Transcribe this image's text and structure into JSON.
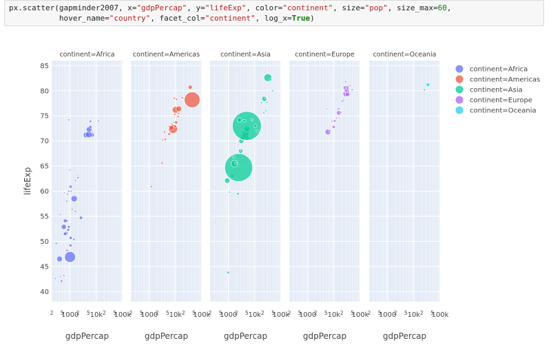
{
  "code": {
    "line1_prefix": "px.scatter(gapminder2007, x=",
    "x_arg": "\"gdpPercap\"",
    "y_pre": ", y=",
    "y_arg": "\"lifeExp\"",
    "color_pre": ", color=",
    "color_arg": "\"continent\"",
    "size_pre": ", size=",
    "size_arg": "\"pop\"",
    "sizemax_pre": ", size_max=",
    "sizemax_arg": "60",
    "line1_end": ",",
    "line2_indent": "           hover_name=",
    "hover_arg": "\"country\"",
    "facet_pre": ", facet_col=",
    "facet_arg": "\"continent\"",
    "logx_pre": ", log_x=",
    "logx_arg": "True",
    "line2_end": ")"
  },
  "chart_data": {
    "type": "scatter",
    "xlabel": "gdpPercap",
    "ylabel": "lifeExp",
    "x_scale": "log",
    "xlim": [
      200,
      100000
    ],
    "ylim": [
      38,
      86
    ],
    "y_ticks": [
      40,
      45,
      50,
      55,
      60,
      65,
      70,
      75,
      80,
      85
    ],
    "x_ticks": [
      {
        "value": 200,
        "label": "2"
      },
      {
        "value": 500,
        "label": "5"
      },
      {
        "value": 1000,
        "label": "1000"
      },
      {
        "value": 2000,
        "label": "2"
      },
      {
        "value": 5000,
        "label": "5"
      },
      {
        "value": 10000,
        "label": "10k"
      },
      {
        "value": 20000,
        "label": "2"
      },
      {
        "value": 50000,
        "label": "5"
      },
      {
        "value": 100000,
        "label": "100k"
      }
    ],
    "grid": true,
    "legend_position": "right",
    "facets": [
      {
        "title": "continent=Africa",
        "color": "#636efa",
        "points": [
          [
            277,
            42.6,
            1.2
          ],
          [
            470,
            42.1,
            1.6
          ],
          [
            430,
            43.0,
            1.2
          ],
          [
            580,
            43.2,
            1.4
          ],
          [
            700,
            46.4,
            1.5
          ],
          [
            1000,
            46.9,
            7.8
          ],
          [
            400,
            46.5,
            4.1
          ],
          [
            760,
            48.2,
            1.5
          ],
          [
            860,
            48.2,
            1.1
          ],
          [
            1040,
            49.2,
            2.0
          ],
          [
            300,
            49.6,
            1.5
          ],
          [
            1400,
            50.4,
            1.6
          ],
          [
            1060,
            50.7,
            2.2
          ],
          [
            700,
            51.6,
            2.8
          ],
          [
            640,
            51.5,
            2.4
          ],
          [
            860,
            52.3,
            2.0
          ],
          [
            580,
            52.9,
            3.7
          ],
          [
            900,
            52.9,
            1.9
          ],
          [
            750,
            54.1,
            2.0
          ],
          [
            650,
            54.1,
            2.7
          ],
          [
            2600,
            54.7,
            2.3
          ],
          [
            420,
            55.3,
            1.2
          ],
          [
            1600,
            56.0,
            1.4
          ],
          [
            1200,
            56.4,
            1.3
          ],
          [
            750,
            58.0,
            1.4
          ],
          [
            1440,
            58.5,
            4.5
          ],
          [
            820,
            59.4,
            1.3
          ],
          [
            900,
            60.0,
            1.4
          ],
          [
            600,
            59.7,
            1.1
          ],
          [
            1100,
            60.0,
            1.3
          ],
          [
            1050,
            60.9,
            2.2
          ],
          [
            1600,
            62.1,
            1.3
          ],
          [
            2000,
            62.7,
            1.5
          ],
          [
            1900,
            63.1,
            1.0
          ],
          [
            1000,
            64.2,
            1.2
          ],
          [
            7000,
            71.2,
            3.0
          ],
          [
            4100,
            71.2,
            4.1
          ],
          [
            5200,
            71.3,
            4.7
          ],
          [
            7100,
            71.8,
            1.2
          ],
          [
            5300,
            72.3,
            4.1
          ],
          [
            6000,
            73.0,
            1.2
          ],
          [
            6000,
            72.8,
            2.0
          ],
          [
            6000,
            73.9,
            1.7
          ],
          [
            12000,
            74.0,
            1.3
          ],
          [
            900,
            74.2,
            1.4
          ]
        ]
      },
      {
        "title": "continent=Americas",
        "color": "#ef553b",
        "points": [
          [
            1200,
            60.9,
            1.4
          ],
          [
            3100,
            65.6,
            1.5
          ],
          [
            3200,
            70.2,
            1.2
          ],
          [
            4100,
            70.3,
            1.6
          ],
          [
            3800,
            71.8,
            1.5
          ],
          [
            5700,
            71.4,
            1.8
          ],
          [
            8000,
            72.4,
            6.5
          ],
          [
            5800,
            72.9,
            1.5
          ],
          [
            7000,
            72.6,
            3.5
          ],
          [
            9700,
            72.9,
            1.8
          ],
          [
            10600,
            73.7,
            2.2
          ],
          [
            7400,
            73.4,
            1.2
          ],
          [
            12600,
            74.9,
            1.5
          ],
          [
            10000,
            76.2,
            4.8
          ],
          [
            13400,
            76.4,
            4.1
          ],
          [
            9300,
            75.3,
            1.5
          ],
          [
            8600,
            73.7,
            1.2
          ],
          [
            13200,
            75.5,
            1.5
          ],
          [
            11000,
            78.3,
            1.5
          ],
          [
            18000,
            78.6,
            1.5
          ],
          [
            9000,
            78.5,
            1.5
          ],
          [
            36300,
            80.7,
            3.0
          ],
          [
            42950,
            78.2,
            11.3
          ]
        ]
      },
      {
        "title": "continent=Asia",
        "color": "#00cc96",
        "points": [
          [
            974,
            43.8,
            1.8
          ],
          [
            1100,
            59.8,
            1.3
          ],
          [
            2300,
            59.5,
            1.7
          ],
          [
            900,
            62.1,
            3.8
          ],
          [
            1400,
            63.1,
            2.4
          ],
          [
            2450,
            64.7,
            20.2
          ],
          [
            1700,
            65.5,
            4.9
          ],
          [
            1900,
            65.6,
            1.8
          ],
          [
            1600,
            66.8,
            1.8
          ],
          [
            2900,
            68.0,
            3.2
          ],
          [
            2700,
            68.1,
            1.6
          ],
          [
            3100,
            70.0,
            3.6
          ],
          [
            3500,
            70.6,
            3.5
          ],
          [
            5000,
            70.6,
            3.1
          ],
          [
            3200,
            71.0,
            1.6
          ],
          [
            4400,
            71.2,
            4.7
          ],
          [
            5200,
            71.4,
            2.0
          ],
          [
            5000,
            72.4,
            4.2
          ],
          [
            4900,
            72.9,
            1.4
          ],
          [
            3500,
            71.7,
            1.8
          ],
          [
            5000,
            73.0,
            20.9
          ],
          [
            4000,
            74.0,
            2.2
          ],
          [
            2600,
            74.2,
            3.3
          ],
          [
            7900,
            74.2,
            1.6
          ],
          [
            10500,
            73.0,
            2.3
          ],
          [
            12500,
            72.0,
            1.8
          ],
          [
            22300,
            75.6,
            1.3
          ],
          [
            27000,
            76.0,
            1.3
          ],
          [
            18000,
            77.6,
            1.4
          ],
          [
            29000,
            77.7,
            1.4
          ],
          [
            23300,
            78.4,
            3.7
          ],
          [
            25500,
            78.6,
            1.3
          ],
          [
            31700,
            82.6,
            5.6
          ],
          [
            39700,
            82.2,
            1.7
          ],
          [
            47000,
            80.0,
            1.4
          ]
        ]
      },
      {
        "title": "continent=Europe",
        "color": "#ab63fa",
        "points": [
          [
            5900,
            71.8,
            4.1
          ],
          [
            7000,
            72.0,
            1.5
          ],
          [
            9800,
            72.8,
            2.1
          ],
          [
            8400,
            73.9,
            1.3
          ],
          [
            10700,
            74.0,
            1.8
          ],
          [
            12600,
            74.5,
            1.2
          ],
          [
            15400,
            75.6,
            3.2
          ],
          [
            18000,
            75.7,
            1.5
          ],
          [
            14800,
            76.4,
            1.6
          ],
          [
            20500,
            77.9,
            1.4
          ],
          [
            22800,
            78.1,
            1.3
          ],
          [
            28600,
            79.4,
            4.3
          ],
          [
            33200,
            79.3,
            3.2
          ],
          [
            27000,
            79.8,
            1.5
          ],
          [
            30800,
            80.2,
            3.6
          ],
          [
            25900,
            80.6,
            2.4
          ],
          [
            32300,
            80.7,
            2.3
          ],
          [
            36100,
            79.8,
            1.6
          ],
          [
            40700,
            81.0,
            1.3
          ],
          [
            36000,
            79.7,
            1.2
          ],
          [
            33700,
            80.5,
            1.6
          ],
          [
            49400,
            80.2,
            1.4
          ],
          [
            5400,
            76.4,
            1.2
          ],
          [
            28000,
            81.8,
            1.3
          ]
        ]
      },
      {
        "title": "continent=Oceania",
        "color": "#19d3f3",
        "points": [
          [
            25200,
            80.2,
            1.6
          ],
          [
            34400,
            81.2,
            2.6
          ]
        ]
      }
    ],
    "legend": [
      {
        "label": "continent=Africa",
        "color": "#636efa"
      },
      {
        "label": "continent=Americas",
        "color": "#ef553b"
      },
      {
        "label": "continent=Asia",
        "color": "#00cc96"
      },
      {
        "label": "continent=Europe",
        "color": "#ab63fa"
      },
      {
        "label": "continent=Oceania",
        "color": "#19d3f3"
      }
    ]
  }
}
